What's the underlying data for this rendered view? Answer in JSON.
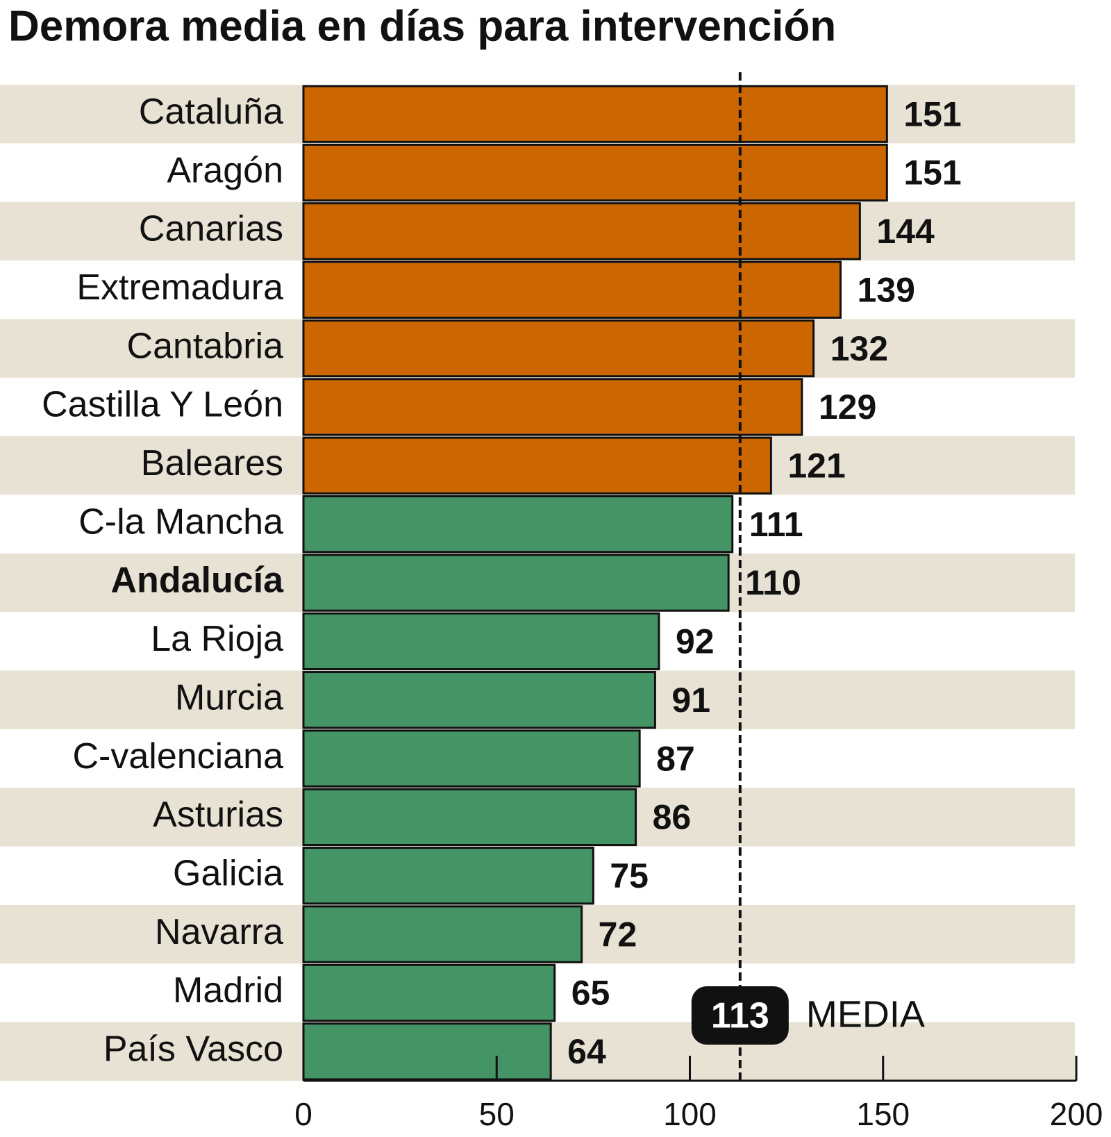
{
  "chart_data": {
    "type": "hbar",
    "title": "Demora media en días para intervención",
    "categories": [
      "Cataluña",
      "Aragón",
      "Canarias",
      "Extremadura",
      "Cantabria",
      "Castilla Y León",
      "Baleares",
      "C-la Mancha",
      "Andalucía",
      "La Rioja",
      "Murcia",
      "C-valenciana",
      "Asturias",
      "Galicia",
      "Navarra",
      "Madrid",
      "País Vasco"
    ],
    "values": [
      151,
      151,
      144,
      139,
      132,
      129,
      121,
      111,
      110,
      92,
      91,
      87,
      86,
      75,
      72,
      65,
      64
    ],
    "above_color": "#cc6600",
    "below_color": "#449466",
    "stripe_color": "#e8e2d4",
    "highlight_category": "Andalucía",
    "mean": {
      "value": 113,
      "label": "MEDIA"
    },
    "xlim": [
      0,
      200
    ],
    "xticks": [
      0,
      50,
      100,
      150,
      200
    ]
  }
}
